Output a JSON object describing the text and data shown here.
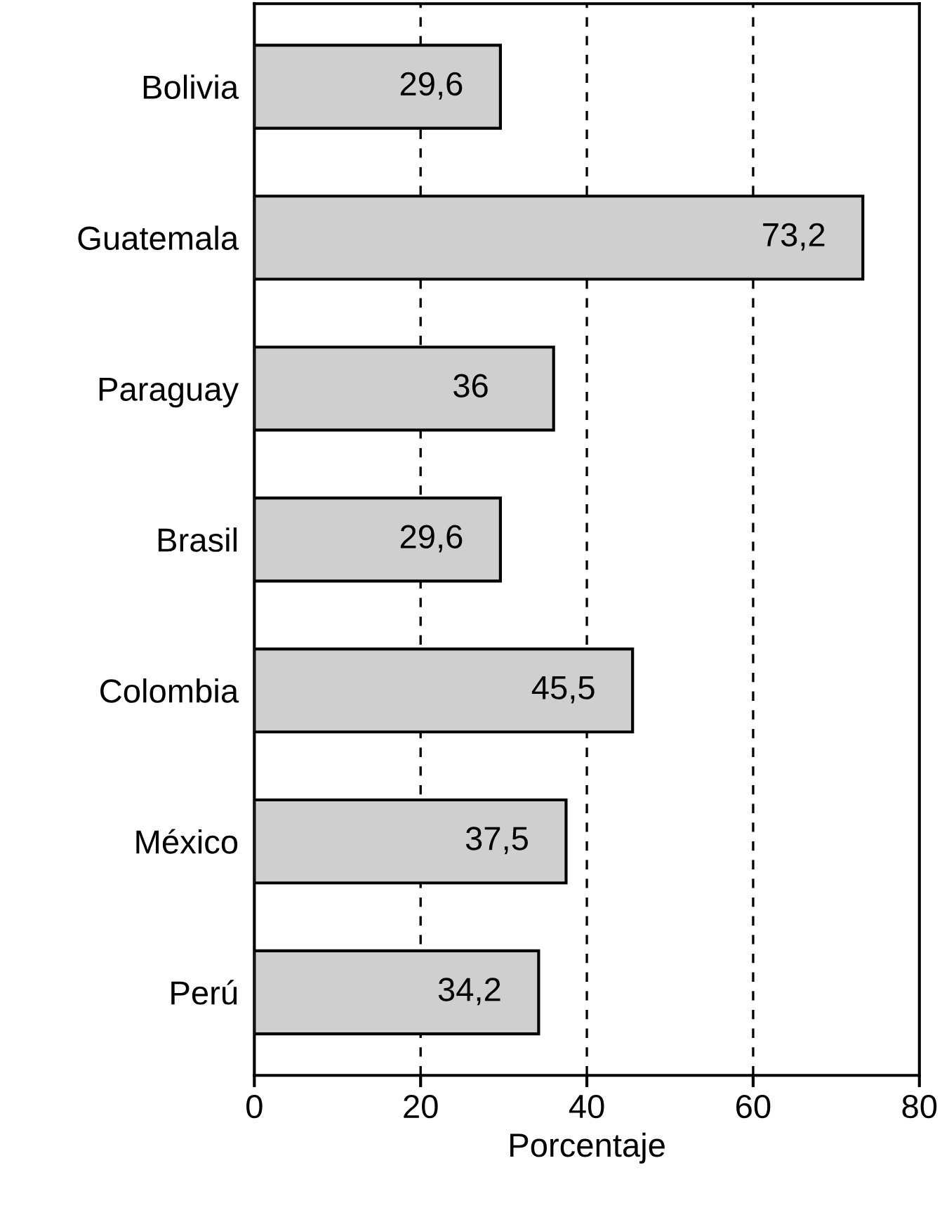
{
  "chart_data": {
    "type": "bar",
    "orientation": "horizontal",
    "xlabel": "Porcentaje",
    "categories": [
      "Bolivia",
      "Guatemala",
      "Paraguay",
      "Brasil",
      "Colombia",
      "México",
      "Perú"
    ],
    "values": [
      29.6,
      73.2,
      36,
      29.6,
      45.5,
      37.5,
      34.2
    ],
    "value_labels": [
      "29,6",
      "73,2",
      "36",
      "29,6",
      "45,5",
      "37,5",
      "34,2"
    ],
    "color": "#cfcfcf",
    "xlim": [
      0,
      80
    ],
    "xticks": [
      0,
      20,
      40,
      60,
      80
    ],
    "grid": "x"
  }
}
